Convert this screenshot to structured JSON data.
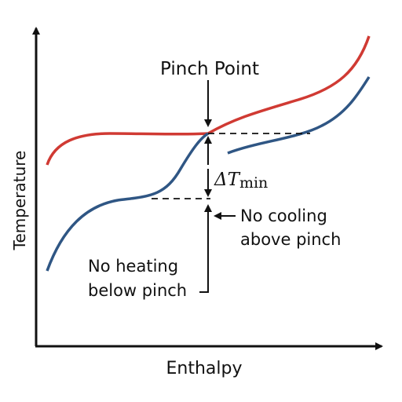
{
  "title": "Pinch Point",
  "x_axis_label": "Enthalpy",
  "y_axis_label": "Temperature",
  "delta_t": {
    "symbol": "ΔT",
    "subscript": "min"
  },
  "annotations": [
    {
      "lines": [
        "No cooling",
        "above pinch"
      ]
    },
    {
      "lines": [
        "No heating",
        "below pinch"
      ]
    }
  ]
}
